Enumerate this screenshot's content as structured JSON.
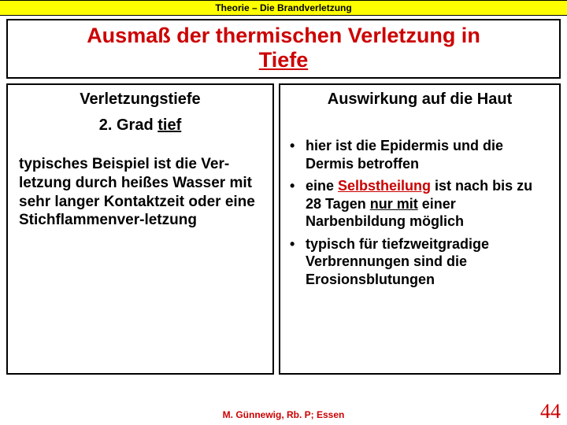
{
  "banner": "Theorie – Die Brandverletzung",
  "title_line1": "Ausmaß der thermischen Verletzung in",
  "title_line2": "Tiefe",
  "left": {
    "heading": "Verletzungstiefe",
    "sub_prefix": "2. Grad ",
    "sub_underlined": "tief",
    "body": "typisches Beispiel ist die Ver-letzung durch heißes Wasser mit sehr langer Kontaktzeit oder eine Stichflammenver-letzung"
  },
  "right": {
    "heading": "Auswirkung auf die Haut",
    "b1": "hier ist die Epidermis und die Dermis betroffen",
    "b2a": "eine ",
    "b2_self": "Selbstheilung",
    "b2b": " ist nach bis zu 28 Tagen ",
    "b2_only": "nur mit",
    "b2c": " einer Narbenbildung möglich",
    "b3": "typisch für tiefzweitgradige Verbrennungen sind die Erosionsblutungen"
  },
  "footer": "M. Günnewig, Rb. P;  Essen",
  "page": "44",
  "colors": {
    "accent_red": "#cc0000",
    "banner_bg": "#ffff00"
  }
}
